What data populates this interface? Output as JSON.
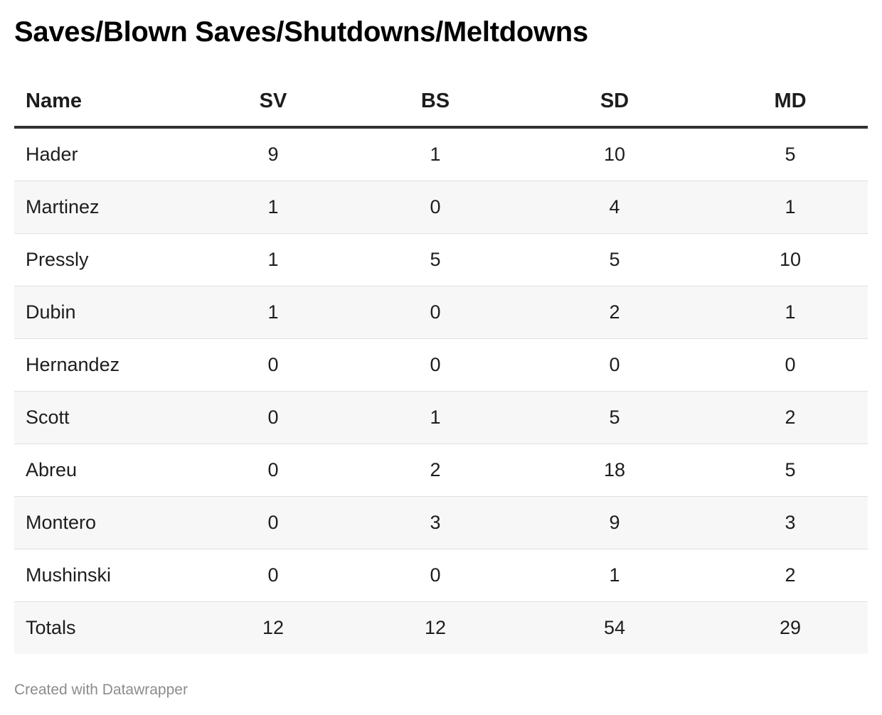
{
  "chart_data": {
    "type": "table",
    "title": "Saves/Blown Saves/Shutdowns/Meltdowns",
    "columns": [
      "Name",
      "SV",
      "BS",
      "SD",
      "MD"
    ],
    "rows": [
      {
        "name": "Hader",
        "values": [
          "9",
          "1",
          "10",
          "5"
        ]
      },
      {
        "name": "Martinez",
        "values": [
          "1",
          "0",
          "4",
          "1"
        ]
      },
      {
        "name": "Pressly",
        "values": [
          "1",
          "5",
          "5",
          "10"
        ]
      },
      {
        "name": "Dubin",
        "values": [
          "1",
          "0",
          "2",
          "1"
        ]
      },
      {
        "name": "Hernandez",
        "values": [
          "0",
          "0",
          "0",
          "0"
        ]
      },
      {
        "name": "Scott",
        "values": [
          "0",
          "1",
          "5",
          "2"
        ]
      },
      {
        "name": "Abreu",
        "values": [
          "0",
          "2",
          "18",
          "5"
        ]
      },
      {
        "name": "Montero",
        "values": [
          "0",
          "3",
          "9",
          "3"
        ]
      },
      {
        "name": "Mushinski",
        "values": [
          "0",
          "0",
          "1",
          "2"
        ]
      },
      {
        "name": "Totals",
        "values": [
          "12",
          "12",
          "54",
          "29"
        ]
      }
    ]
  },
  "footer": {
    "credit": "Created with Datawrapper"
  }
}
